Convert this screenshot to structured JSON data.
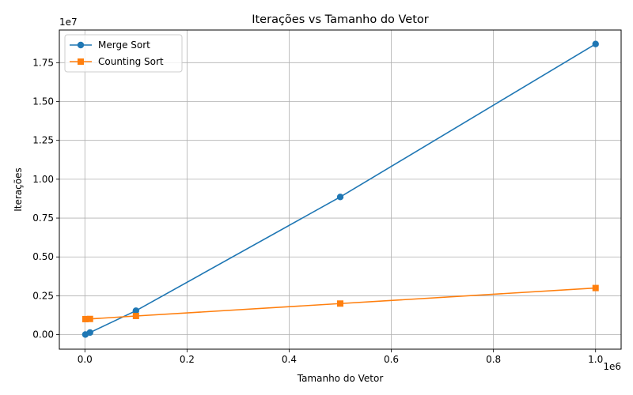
{
  "chart_data": {
    "type": "line",
    "title": "Iterações vs Tamanho do Vetor",
    "xlabel": "Tamanho do Vetor",
    "ylabel": "Iterações",
    "x_offset_label": "1e6",
    "y_offset_label": "1e7",
    "x_tick_values": [
      0,
      200000,
      400000,
      600000,
      800000,
      1000000
    ],
    "x_tick_labels": [
      "0.0",
      "0.2",
      "0.4",
      "0.6",
      "0.8",
      "1.0"
    ],
    "y_tick_values": [
      0,
      2500000,
      5000000,
      7500000,
      10000000,
      12500000,
      15000000,
      17500000
    ],
    "y_tick_labels": [
      "0.00",
      "0.25",
      "0.50",
      "0.75",
      "1.00",
      "1.25",
      "1.50",
      "1.75"
    ],
    "xlim": [
      -50000,
      1050000
    ],
    "ylim": [
      -935000,
      19600000
    ],
    "grid": true,
    "legend_position": "top-left",
    "series": [
      {
        "name": "Merge Sort",
        "color": "#1f77b4",
        "marker": "circle",
        "x": [
          1000,
          10000,
          100000,
          500000,
          1000000
        ],
        "y": [
          10000,
          135000,
          1540000,
          8860000,
          18700000
        ]
      },
      {
        "name": "Counting Sort",
        "color": "#ff7f0e",
        "marker": "square",
        "x": [
          1000,
          10000,
          100000,
          500000,
          1000000
        ],
        "y": [
          1000000,
          1010000,
          1200000,
          2000000,
          3000000
        ]
      }
    ]
  }
}
